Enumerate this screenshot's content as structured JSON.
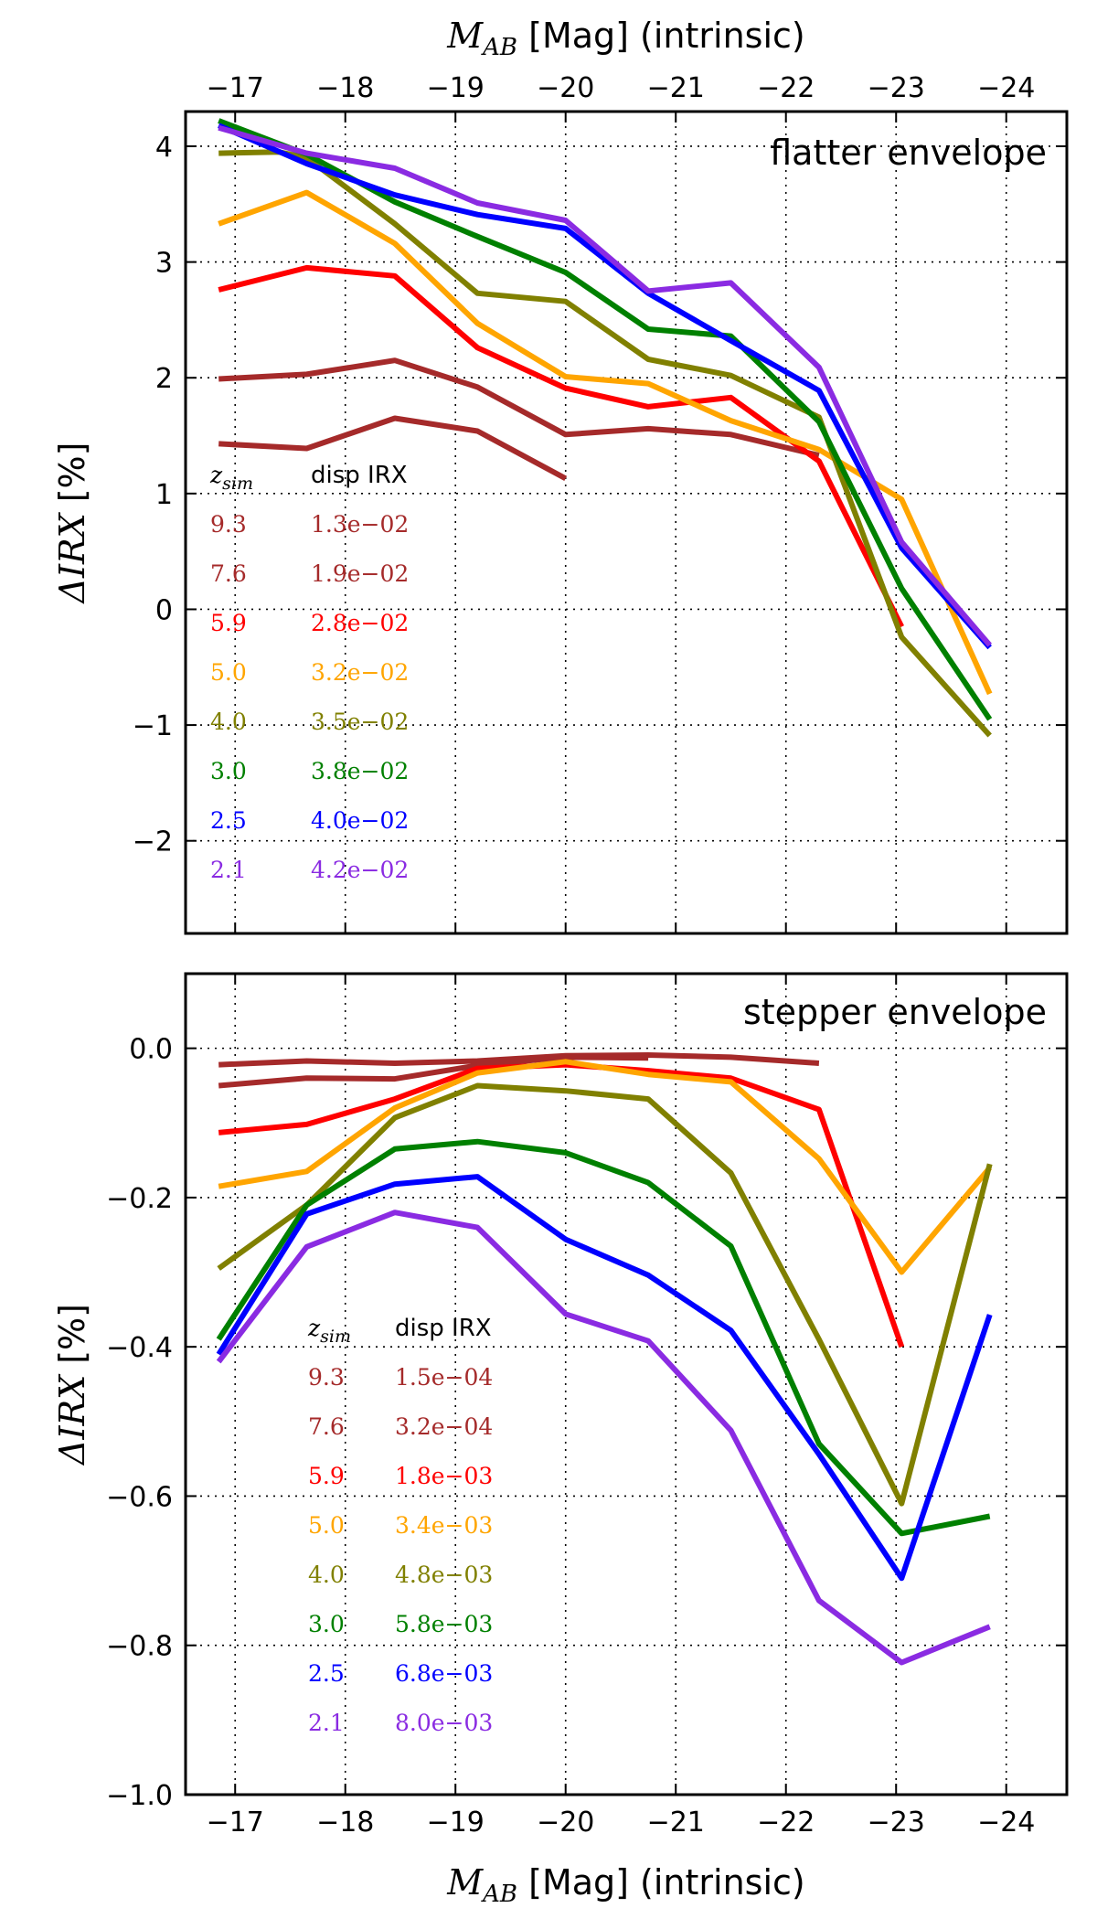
{
  "chart_data": [
    {
      "type": "line",
      "panel": "top",
      "annotation": "flatter envelope",
      "top_xlabel": "[Mag] (intrinsic)",
      "top_xlabel_symbol": "M",
      "top_xlabel_sub": "AB",
      "ylabel_symbol": "ΔIRX",
      "ylabel_unit": "[%]",
      "xlim": [
        -16.55,
        -24.55
      ],
      "ylim": [
        -2.8,
        4.3
      ],
      "xticks": [
        -17,
        -18,
        -19,
        -20,
        -21,
        -22,
        -23,
        -24
      ],
      "xtick_labels": [
        "−17",
        "−18",
        "−19",
        "−20",
        "−21",
        "−22",
        "−23",
        "−24"
      ],
      "yticks": [
        4,
        3,
        2,
        1,
        0,
        -1,
        -2
      ],
      "ytick_labels": [
        "4",
        "3",
        "2",
        "1",
        "0",
        "−1",
        "−2"
      ],
      "grid": true,
      "legend": {
        "header_symbol": "z",
        "header_sub": "sim",
        "header_col2": "disp IRX",
        "placement": "left-middle"
      },
      "series": [
        {
          "name": "9.3",
          "disp": "1.3e−02",
          "color": "#a52a2a",
          "x": [
            -16.85,
            -17.65,
            -18.45,
            -19.2,
            -20.0
          ],
          "y": [
            1.43,
            1.39,
            1.65,
            1.54,
            1.13
          ]
        },
        {
          "name": "7.6",
          "disp": "1.9e−02",
          "color": "#a52a2a",
          "x": [
            -16.85,
            -17.65,
            -18.45,
            -19.2,
            -20.0,
            -20.75,
            -21.5,
            -22.3
          ],
          "y": [
            1.99,
            2.03,
            2.15,
            1.92,
            1.51,
            1.56,
            1.51,
            1.33
          ]
        },
        {
          "name": "5.9",
          "disp": "2.8e−02",
          "color": "#ff0000",
          "x": [
            -16.85,
            -17.65,
            -18.45,
            -19.2,
            -20.0,
            -20.75,
            -21.5,
            -22.3,
            -23.05
          ],
          "y": [
            2.76,
            2.95,
            2.88,
            2.26,
            1.91,
            1.75,
            1.83,
            1.28,
            -0.15
          ]
        },
        {
          "name": "5.0",
          "disp": "3.2e−02",
          "color": "#ffa500",
          "x": [
            -16.85,
            -17.65,
            -18.45,
            -19.2,
            -20.0,
            -20.75,
            -21.5,
            -22.3,
            -23.05,
            -23.85
          ],
          "y": [
            3.33,
            3.6,
            3.16,
            2.47,
            2.01,
            1.95,
            1.63,
            1.38,
            0.95,
            -0.73
          ]
        },
        {
          "name": "4.0",
          "disp": "3.5e−02",
          "color": "#808000",
          "x": [
            -16.85,
            -17.4,
            -17.65,
            -18.45,
            -19.2,
            -20.0,
            -20.75,
            -21.5,
            -22.3,
            -23.05,
            -23.85
          ],
          "y": [
            3.94,
            3.95,
            3.9,
            3.33,
            2.73,
            2.66,
            2.16,
            2.02,
            1.66,
            -0.24,
            -1.09
          ]
        },
        {
          "name": "3.0",
          "disp": "3.8e−02",
          "color": "#008000",
          "x": [
            -16.85,
            -17.65,
            -18.45,
            -19.2,
            -20.0,
            -20.75,
            -21.5,
            -22.3,
            -23.05,
            -23.85
          ],
          "y": [
            4.22,
            3.93,
            3.52,
            3.22,
            2.91,
            2.42,
            2.36,
            1.62,
            0.18,
            -0.95
          ]
        },
        {
          "name": "2.5",
          "disp": "4.0e−02",
          "color": "#0000ff",
          "x": [
            -16.85,
            -17.65,
            -18.45,
            -19.2,
            -20.0,
            -20.75,
            -21.5,
            -22.3,
            -23.05,
            -23.85
          ],
          "y": [
            4.18,
            3.85,
            3.58,
            3.41,
            3.29,
            2.73,
            2.32,
            1.89,
            0.53,
            -0.33
          ]
        },
        {
          "name": "2.1",
          "disp": "4.2e−02",
          "color": "#8a2be2",
          "x": [
            -16.85,
            -17.65,
            -18.45,
            -19.2,
            -20.0,
            -20.75,
            -21.5,
            -22.3,
            -23.05,
            -23.85
          ],
          "y": [
            4.16,
            3.94,
            3.81,
            3.51,
            3.36,
            2.75,
            2.82,
            2.09,
            0.58,
            -0.31
          ]
        }
      ]
    },
    {
      "type": "line",
      "panel": "bottom",
      "annotation": "stepper envelope",
      "xlabel": "[Mag] (intrinsic)",
      "xlabel_symbol": "M",
      "xlabel_sub": "AB",
      "ylabel_symbol": "ΔIRX",
      "ylabel_unit": "[%]",
      "xlim": [
        -16.55,
        -24.55
      ],
      "ylim": [
        -1.0,
        0.1
      ],
      "xticks": [
        -17,
        -18,
        -19,
        -20,
        -21,
        -22,
        -23,
        -24
      ],
      "xtick_labels": [
        "−17",
        "−18",
        "−19",
        "−20",
        "−21",
        "−22",
        "−23",
        "−24"
      ],
      "yticks": [
        0.0,
        -0.2,
        -0.4,
        -0.6,
        -0.8,
        -1.0
      ],
      "ytick_labels": [
        "0.0",
        "−0.2",
        "−0.4",
        "−0.6",
        "−0.8",
        "−1.0"
      ],
      "grid": true,
      "legend": {
        "header_symbol": "z",
        "header_sub": "sim",
        "header_col2": "disp IRX",
        "placement": "left-middle"
      },
      "series": [
        {
          "name": "9.3",
          "disp": "1.5e−04",
          "color": "#a52a2a",
          "x": [
            -16.85,
            -17.65,
            -18.45,
            -19.2,
            -20.0,
            -20.75,
            -21.5,
            -22.3
          ],
          "y": [
            -0.022,
            -0.017,
            -0.02,
            -0.017,
            -0.01,
            -0.009,
            -0.012,
            -0.02
          ]
        },
        {
          "name": "7.6",
          "disp": "3.2e−04",
          "color": "#a52a2a",
          "x": [
            -16.85,
            -17.65,
            -18.45,
            -19.2,
            -20.0,
            -20.75
          ],
          "y": [
            -0.05,
            -0.04,
            -0.041,
            -0.023,
            -0.012,
            -0.013
          ]
        },
        {
          "name": "5.9",
          "disp": "1.8e−03",
          "color": "#ff0000",
          "x": [
            -16.85,
            -17.65,
            -18.45,
            -19.2,
            -20.0,
            -20.75,
            -21.5,
            -22.3,
            -23.05
          ],
          "y": [
            -0.113,
            -0.102,
            -0.068,
            -0.027,
            -0.022,
            -0.03,
            -0.04,
            -0.082,
            -0.4
          ]
        },
        {
          "name": "5.0",
          "disp": "3.4e−03",
          "color": "#ffa500",
          "x": [
            -16.85,
            -17.65,
            -18.45,
            -19.2,
            -20.0,
            -20.75,
            -21.5,
            -22.3,
            -23.05,
            -23.85
          ],
          "y": [
            -0.185,
            -0.165,
            -0.08,
            -0.033,
            -0.018,
            -0.035,
            -0.045,
            -0.148,
            -0.3,
            -0.16
          ]
        },
        {
          "name": "4.0",
          "disp": "4.8e−03",
          "color": "#808000",
          "x": [
            -16.85,
            -17.65,
            -18.45,
            -19.2,
            -20.0,
            -20.75,
            -21.5,
            -22.3,
            -23.05,
            -23.85
          ],
          "y": [
            -0.295,
            -0.21,
            -0.093,
            -0.05,
            -0.057,
            -0.068,
            -0.167,
            -0.39,
            -0.61,
            -0.155
          ]
        },
        {
          "name": "3.0",
          "disp": "5.8e−03",
          "color": "#008000",
          "x": [
            -16.85,
            -17.65,
            -18.45,
            -19.2,
            -20.0,
            -20.75,
            -21.5,
            -22.3,
            -23.05,
            -23.85
          ],
          "y": [
            -0.39,
            -0.21,
            -0.135,
            -0.125,
            -0.14,
            -0.18,
            -0.265,
            -0.53,
            -0.65,
            -0.627
          ]
        },
        {
          "name": "2.5",
          "disp": "6.8e−03",
          "color": "#0000ff",
          "x": [
            -16.85,
            -17.65,
            -18.45,
            -19.2,
            -20.0,
            -20.75,
            -21.5,
            -22.3,
            -23.05,
            -23.85
          ],
          "y": [
            -0.41,
            -0.222,
            -0.182,
            -0.172,
            -0.256,
            -0.304,
            -0.378,
            -0.544,
            -0.71,
            -0.357
          ]
        },
        {
          "name": "2.1",
          "disp": "8.0e−03",
          "color": "#8a2be2",
          "x": [
            -16.85,
            -17.65,
            -18.45,
            -19.2,
            -20.0,
            -20.75,
            -21.5,
            -22.3,
            -23.05,
            -23.85
          ],
          "y": [
            -0.42,
            -0.266,
            -0.22,
            -0.24,
            -0.356,
            -0.392,
            -0.512,
            -0.74,
            -0.823,
            -0.775
          ]
        }
      ]
    }
  ]
}
